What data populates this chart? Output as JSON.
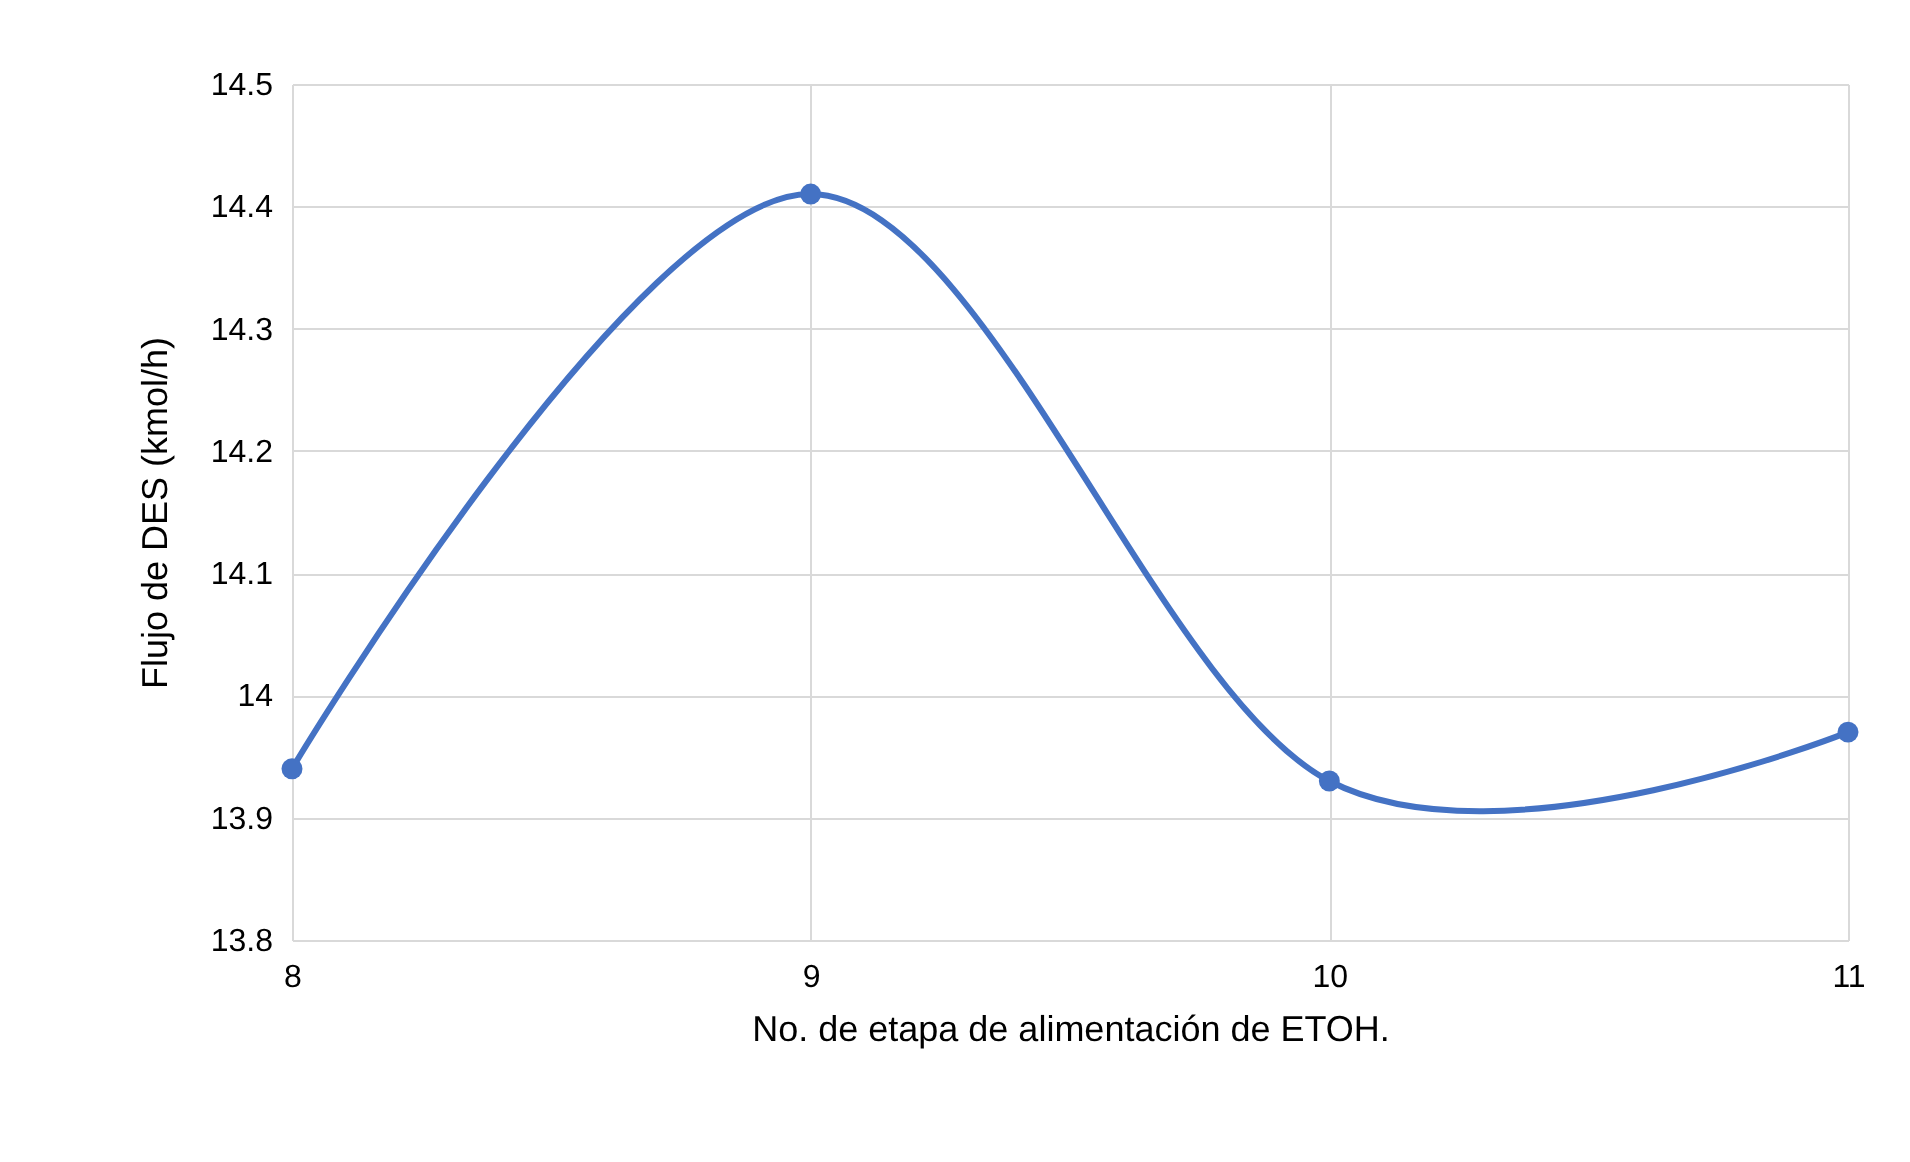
{
  "chart_data": {
    "type": "line",
    "xlabel": "No. de etapa de alimentación de ETOH.",
    "ylabel": "Flujo de DES (kmol/h)",
    "x": [
      8,
      9,
      10,
      11
    ],
    "series": [
      {
        "color": "#4472c4",
        "values": [
          13.94,
          14.41,
          13.93,
          13.97
        ]
      }
    ],
    "xlim": [
      8,
      11
    ],
    "xticks": [
      8,
      9,
      10,
      11
    ],
    "ylim": [
      13.8,
      14.5
    ],
    "yticks": [
      13.8,
      13.9,
      14,
      14.1,
      14.2,
      14.3,
      14.4,
      14.5
    ],
    "grid": true,
    "marker": "circle"
  }
}
